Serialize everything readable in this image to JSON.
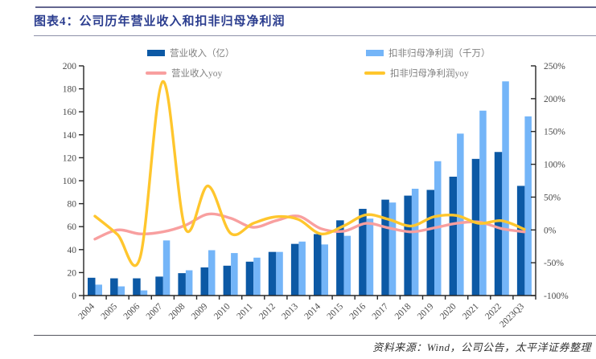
{
  "header": {
    "title": "图表4：公司历年营业收入和扣非归母净利润"
  },
  "footer": {
    "source": "资料来源：Wind，公司公告，太平洋证券整理"
  },
  "style": {
    "title_color": "#2B3D8F",
    "rule_color": "#63668F",
    "axis_text_color": "#4a4a4a",
    "axis_line_color": "#262626",
    "legend_text_color": "#808080",
    "source_color": "#333333",
    "background": "#ffffff"
  },
  "chart_data": {
    "type": "bar+line combo",
    "title": "公司历年营业收入和扣非归母净利润",
    "grid": false,
    "legend_position": "top",
    "categories": [
      "2004",
      "2005",
      "2006",
      "2007",
      "2008",
      "2009",
      "2010",
      "2011",
      "2012",
      "2013",
      "2014",
      "2015",
      "2016",
      "2017",
      "2018",
      "2019",
      "2020",
      "2021",
      "2022",
      "2023Q3"
    ],
    "series": [
      {
        "name": "营业收入（亿）",
        "type": "bar",
        "axis": "left",
        "color": "#0C59A5",
        "values": [
          15.5,
          15,
          15,
          16.5,
          19.5,
          24.5,
          26,
          29.5,
          38,
          45,
          53.5,
          65.5,
          75.5,
          83.5,
          87,
          92,
          103.5,
          119,
          125,
          95.5
        ]
      },
      {
        "name": "扣非归母净利润（千万）",
        "type": "bar",
        "axis": "left",
        "color": "#74B5F8",
        "values": [
          9.5,
          8,
          4.5,
          48,
          22,
          39.5,
          37,
          33,
          38,
          47,
          44.5,
          52,
          67,
          81,
          93,
          117,
          141,
          161,
          186.5,
          156
        ]
      },
      {
        "name": "营业收入yoy",
        "type": "line",
        "axis": "right",
        "color": "#F89F9F",
        "values": [
          -14,
          0,
          -6,
          -3,
          7,
          24,
          18,
          4,
          14,
          21,
          2,
          -2,
          10,
          3,
          -3,
          3,
          10,
          12,
          2,
          -3
        ]
      },
      {
        "name": "扣非归母净利润yoy",
        "type": "line",
        "axis": "right",
        "color": "#FFC62D",
        "values": [
          21,
          -7,
          -42,
          226,
          2,
          67,
          -5,
          10,
          20,
          16,
          -6,
          6,
          23,
          16,
          6,
          20,
          22,
          10,
          14,
          1
        ]
      }
    ],
    "left_axis": {
      "min": 0,
      "max": 200,
      "ticks": [
        "0",
        "20",
        "40",
        "60",
        "80",
        "100",
        "120",
        "140",
        "160",
        "180",
        "200"
      ]
    },
    "right_axis": {
      "min": -100,
      "max": 250,
      "ticks": [
        "-100%",
        "-50%",
        "0%",
        "50%",
        "100%",
        "150%",
        "200%",
        "250%"
      ]
    }
  }
}
